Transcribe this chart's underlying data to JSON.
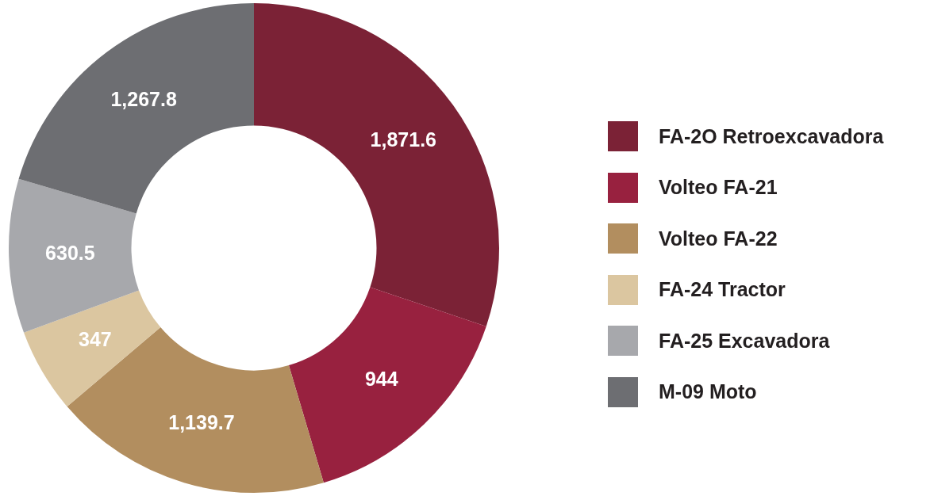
{
  "chart_data": {
    "type": "donut",
    "categories": [
      "FA-2O Retroexcavadora",
      "Volteo FA-21",
      "Volteo FA-22",
      "FA-24 Tractor",
      "FA-25 Excavadora",
      "M-09 Moto"
    ],
    "values": [
      1871.6,
      944,
      1139.7,
      347,
      630.5,
      1267.8
    ],
    "value_labels": [
      "1,871.6",
      "944",
      "1,139.7",
      "347",
      "630.5",
      "1,267.8"
    ],
    "colors": [
      "#7b2236",
      "#98213f",
      "#b28e5f",
      "#dbc6a0",
      "#a7a8ac",
      "#6d6e72"
    ],
    "legend": "right"
  }
}
